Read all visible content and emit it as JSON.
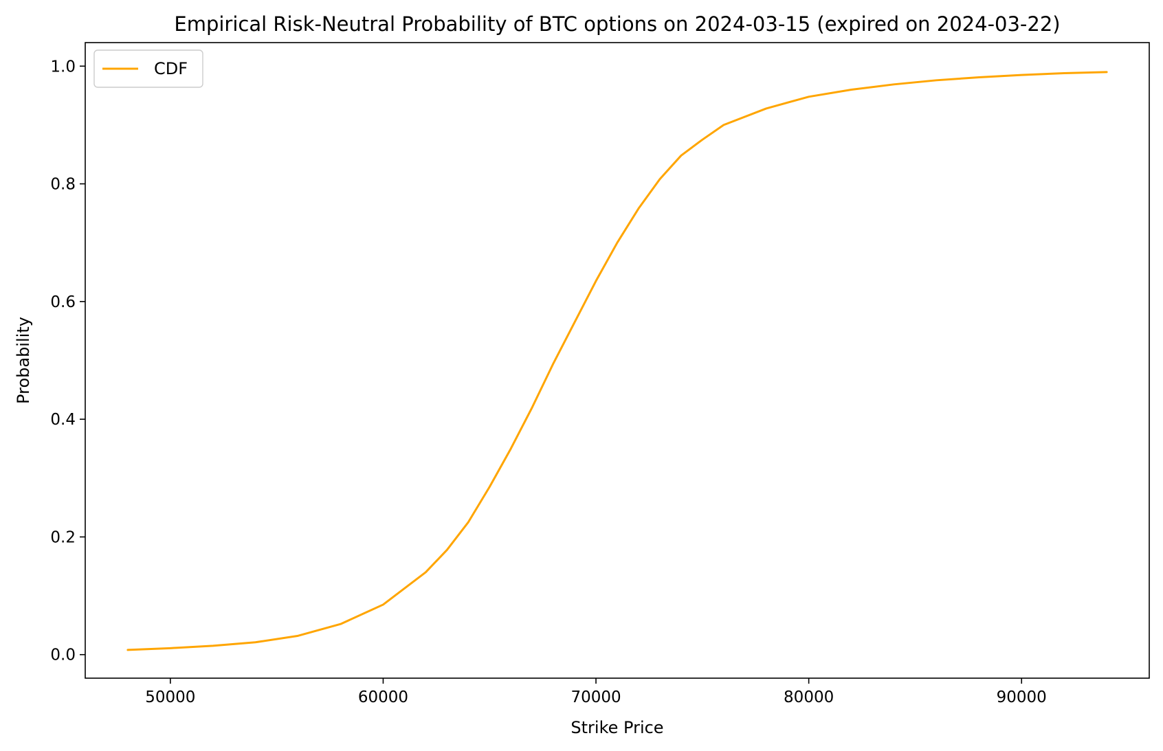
{
  "chart_data": {
    "type": "line",
    "title": "Empirical Risk-Neutral Probability of BTC options on 2024-03-15 (expired on 2024-03-22)",
    "xlabel": "Strike Price",
    "ylabel": "Probability",
    "xlim": [
      46000,
      96000
    ],
    "ylim": [
      -0.04,
      1.04
    ],
    "xticks": [
      50000,
      60000,
      70000,
      80000,
      90000
    ],
    "yticks": [
      0.0,
      0.2,
      0.4,
      0.6,
      0.8,
      1.0
    ],
    "xtick_labels": [
      "50000",
      "60000",
      "70000",
      "80000",
      "90000"
    ],
    "ytick_labels": [
      "0.0",
      "0.2",
      "0.4",
      "0.6",
      "0.8",
      "1.0"
    ],
    "grid": false,
    "legend": {
      "position": "top-left",
      "entries": [
        "CDF"
      ]
    },
    "series": [
      {
        "name": "CDF",
        "color": "#FFA500",
        "x": [
          48000,
          50000,
          52000,
          54000,
          56000,
          58000,
          60000,
          62000,
          63000,
          64000,
          65000,
          66000,
          67000,
          68000,
          69000,
          70000,
          71000,
          72000,
          73000,
          74000,
          75000,
          76000,
          78000,
          80000,
          82000,
          84000,
          86000,
          88000,
          90000,
          92000,
          94000
        ],
        "y": [
          0.008,
          0.011,
          0.015,
          0.021,
          0.032,
          0.052,
          0.085,
          0.14,
          0.178,
          0.225,
          0.285,
          0.35,
          0.42,
          0.495,
          0.565,
          0.635,
          0.7,
          0.758,
          0.808,
          0.848,
          0.875,
          0.9,
          0.928,
          0.948,
          0.96,
          0.969,
          0.976,
          0.981,
          0.985,
          0.988,
          0.99
        ]
      }
    ]
  }
}
